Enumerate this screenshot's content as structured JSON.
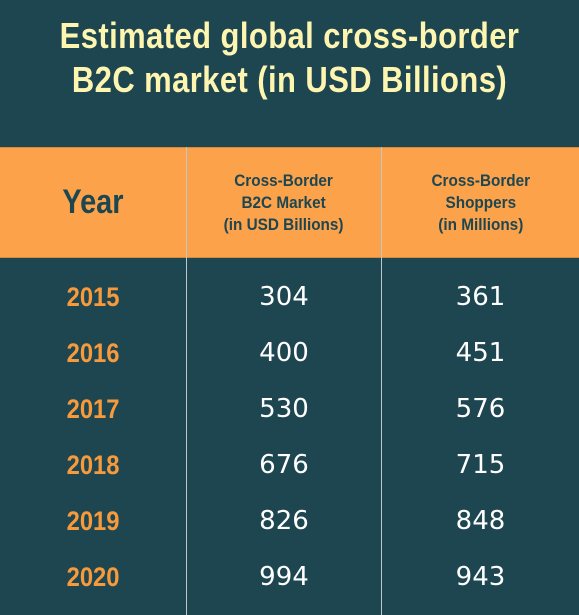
{
  "chart_data": {
    "type": "table",
    "title_lines": [
      "Estimated global cross-border",
      "B2C market (in USD Billions)"
    ],
    "columns": [
      {
        "lines": [
          "Year"
        ]
      },
      {
        "lines": [
          "Cross-Border",
          "B2C Market",
          "(in USD Billions)"
        ]
      },
      {
        "lines": [
          "Cross-Border",
          "Shoppers",
          "(in Millions)"
        ]
      }
    ],
    "rows": [
      {
        "year": "2015",
        "market": 304,
        "shoppers": 361
      },
      {
        "year": "2016",
        "market": 400,
        "shoppers": 451
      },
      {
        "year": "2017",
        "market": 530,
        "shoppers": 576
      },
      {
        "year": "2018",
        "market": 676,
        "shoppers": 715
      },
      {
        "year": "2019",
        "market": 826,
        "shoppers": 848
      },
      {
        "year": "2020",
        "market": 994,
        "shoppers": 943
      }
    ]
  },
  "colors": {
    "background": "#1e4650",
    "title_text": "#fdf5b0",
    "header_fill": "#fba24a",
    "header_text": "#1e4650",
    "year_text": "#f79a3c",
    "value_text": "#ffffff"
  }
}
